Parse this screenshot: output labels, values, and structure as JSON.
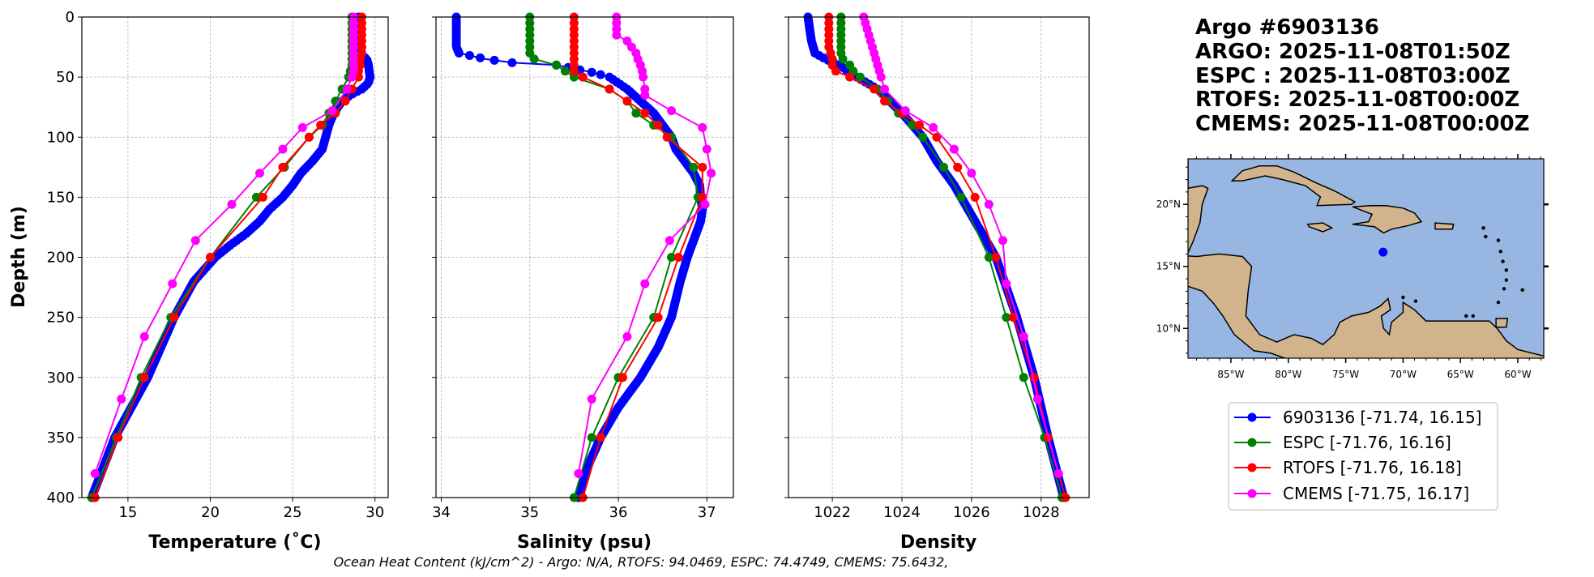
{
  "title_lines": [
    "Argo #6903136",
    "ARGO: 2025-11-08T01:50Z",
    "ESPC : 2025-11-08T03:00Z",
    "RTOFS: 2025-11-08T00:00Z",
    "CMEMS: 2025-11-08T00:00Z"
  ],
  "caption": "Ocean Heat Content (kJ/cm^2) - Argo: N/A,  RTOFS: 94.0469,  ESPC: 74.4749,  CMEMS: 75.6432,",
  "legend": [
    {
      "label": "6903136 [-71.74, 16.15]",
      "color": "#0000ff"
    },
    {
      "label": "ESPC [-71.76, 16.16]",
      "color": "#008000"
    },
    {
      "label": "RTOFS [-71.76, 16.18]",
      "color": "#ff0000"
    },
    {
      "label": "CMEMS [-71.75, 16.17]",
      "color": "#ff00ff"
    }
  ],
  "chart_data": [
    {
      "type": "line",
      "xlabel": "Temperature (˚C)",
      "ylabel": "Depth (m)",
      "xlim": [
        12.2,
        30.8
      ],
      "ylim": [
        400,
        0
      ],
      "xticks": [
        15,
        20,
        25,
        30
      ],
      "yticks": [
        0,
        50,
        100,
        150,
        200,
        250,
        300,
        350,
        400
      ],
      "grid": true,
      "series": [
        {
          "name": "6903136",
          "color": "#0000ff",
          "depth": [
            0,
            10,
            20,
            30,
            35,
            40,
            50,
            55,
            60,
            65,
            70,
            80,
            90,
            100,
            110,
            120,
            130,
            140,
            150,
            160,
            170,
            180,
            190,
            200,
            220,
            250,
            275,
            300,
            325,
            350,
            375,
            400
          ],
          "values": [
            29.0,
            29.0,
            29.0,
            29.0,
            29.5,
            29.6,
            29.7,
            29.6,
            29.2,
            28.5,
            28.0,
            27.5,
            27.2,
            27.0,
            26.8,
            26.2,
            25.5,
            25.0,
            24.4,
            23.6,
            23.0,
            22.2,
            21.2,
            20.3,
            19.0,
            17.8,
            17.0,
            16.2,
            15.2,
            14.2,
            13.5,
            12.8
          ]
        },
        {
          "name": "ESPC",
          "color": "#008000",
          "depth": [
            0,
            5,
            10,
            15,
            20,
            25,
            30,
            35,
            40,
            45,
            50,
            60,
            70,
            80,
            90,
            100,
            125,
            150,
            200,
            250,
            300,
            350,
            400
          ],
          "values": [
            28.6,
            28.6,
            28.6,
            28.6,
            28.6,
            28.6,
            28.6,
            28.6,
            28.6,
            28.5,
            28.4,
            28.0,
            27.6,
            27.2,
            26.8,
            26.0,
            24.5,
            22.8,
            20.0,
            17.6,
            15.8,
            14.3,
            12.8
          ]
        },
        {
          "name": "RTOFS",
          "color": "#ff0000",
          "depth": [
            0,
            5,
            10,
            15,
            20,
            25,
            30,
            35,
            40,
            45,
            50,
            60,
            70,
            80,
            90,
            100,
            125,
            150,
            200,
            250,
            300,
            350,
            400
          ],
          "values": [
            29.2,
            29.2,
            29.2,
            29.2,
            29.2,
            29.2,
            29.2,
            29.1,
            29.1,
            29.0,
            29.0,
            28.6,
            28.2,
            27.6,
            26.7,
            26.0,
            24.4,
            23.2,
            20.0,
            17.8,
            16.0,
            14.4,
            13.0
          ]
        },
        {
          "name": "CMEMS",
          "color": "#ff00ff",
          "depth": [
            0,
            5,
            10,
            15,
            20,
            25,
            30,
            35,
            40,
            45,
            50,
            60,
            78,
            92,
            110,
            130,
            156,
            186,
            222,
            266,
            318,
            380
          ],
          "values": [
            28.7,
            28.7,
            28.7,
            28.7,
            28.7,
            28.7,
            28.7,
            28.7,
            28.7,
            28.7,
            28.6,
            28.3,
            27.4,
            25.6,
            24.4,
            23.0,
            21.3,
            19.1,
            17.7,
            16.0,
            14.6,
            13.0
          ]
        }
      ]
    },
    {
      "type": "line",
      "xlabel": "Salinity (psu)",
      "xlim": [
        33.94,
        37.3
      ],
      "ylim": [
        400,
        0
      ],
      "xticks": [
        34,
        35,
        36,
        37
      ],
      "yticks": [
        0,
        50,
        100,
        150,
        200,
        250,
        300,
        350,
        400
      ],
      "grid": true,
      "series": [
        {
          "name": "6903136",
          "color": "#0000ff",
          "depth": [
            0,
            10,
            20,
            25,
            30,
            35,
            38,
            40,
            43,
            46,
            50,
            60,
            70,
            80,
            90,
            100,
            110,
            120,
            130,
            140,
            150,
            160,
            170,
            180,
            200,
            220,
            250,
            275,
            300,
            325,
            350,
            375,
            400
          ],
          "values": [
            34.17,
            34.17,
            34.17,
            34.17,
            34.2,
            34.5,
            34.8,
            35.3,
            35.5,
            35.7,
            35.9,
            36.1,
            36.25,
            36.4,
            36.5,
            36.6,
            36.65,
            36.75,
            36.85,
            36.92,
            36.93,
            36.95,
            36.93,
            36.88,
            36.78,
            36.7,
            36.6,
            36.45,
            36.25,
            36.0,
            35.8,
            35.65,
            35.55
          ]
        },
        {
          "name": "ESPC",
          "color": "#008000",
          "depth": [
            0,
            5,
            10,
            15,
            20,
            25,
            30,
            35,
            40,
            45,
            50,
            60,
            70,
            80,
            90,
            100,
            125,
            150,
            200,
            250,
            300,
            350,
            400
          ],
          "values": [
            35.0,
            35.0,
            35.0,
            35.0,
            35.0,
            35.0,
            35.0,
            35.05,
            35.3,
            35.4,
            35.5,
            35.9,
            36.1,
            36.2,
            36.4,
            36.6,
            36.85,
            36.9,
            36.6,
            36.4,
            36.0,
            35.7,
            35.5
          ]
        },
        {
          "name": "RTOFS",
          "color": "#ff0000",
          "depth": [
            0,
            5,
            10,
            15,
            20,
            25,
            30,
            35,
            40,
            45,
            50,
            60,
            70,
            80,
            90,
            100,
            125,
            150,
            200,
            250,
            300,
            350,
            400
          ],
          "values": [
            35.5,
            35.5,
            35.5,
            35.5,
            35.5,
            35.5,
            35.5,
            35.5,
            35.5,
            35.5,
            35.6,
            35.9,
            36.1,
            36.3,
            36.45,
            36.55,
            36.95,
            36.95,
            36.68,
            36.45,
            36.05,
            35.8,
            35.6
          ]
        },
        {
          "name": "CMEMS",
          "color": "#ff00ff",
          "depth": [
            0,
            5,
            10,
            15,
            20,
            25,
            30,
            35,
            40,
            45,
            50,
            60,
            65,
            78,
            92,
            110,
            130,
            156,
            186,
            222,
            266,
            318,
            380
          ],
          "values": [
            35.98,
            35.98,
            35.98,
            35.98,
            36.1,
            36.15,
            36.2,
            36.22,
            36.25,
            36.27,
            36.28,
            36.3,
            36.3,
            36.6,
            36.95,
            37.0,
            37.05,
            36.98,
            36.58,
            36.3,
            36.1,
            35.7,
            35.55
          ]
        }
      ]
    },
    {
      "type": "line",
      "xlabel": "Density",
      "xlim": [
        1020.74,
        1029.38
      ],
      "ylim": [
        400,
        0
      ],
      "xticks": [
        1022,
        1024,
        1026,
        1028
      ],
      "yticks": [
        0,
        50,
        100,
        150,
        200,
        250,
        300,
        350,
        400
      ],
      "grid": true,
      "series": [
        {
          "name": "6903136",
          "color": "#0000ff",
          "depth": [
            0,
            20,
            30,
            35,
            40,
            50,
            60,
            80,
            100,
            120,
            140,
            160,
            180,
            200,
            250,
            300,
            350,
            400
          ],
          "values": [
            1021.3,
            1021.4,
            1021.5,
            1021.8,
            1022.2,
            1022.7,
            1023.3,
            1024.0,
            1024.6,
            1025.0,
            1025.5,
            1025.9,
            1026.3,
            1026.7,
            1027.3,
            1027.8,
            1028.2,
            1028.65
          ]
        },
        {
          "name": "ESPC",
          "color": "#008000",
          "depth": [
            0,
            5,
            10,
            15,
            20,
            25,
            30,
            35,
            40,
            45,
            50,
            60,
            70,
            80,
            90,
            100,
            125,
            150,
            200,
            250,
            300,
            350,
            400
          ],
          "values": [
            1022.25,
            1022.25,
            1022.25,
            1022.25,
            1022.25,
            1022.25,
            1022.25,
            1022.3,
            1022.5,
            1022.6,
            1022.8,
            1023.3,
            1023.6,
            1023.9,
            1024.3,
            1024.6,
            1025.2,
            1025.7,
            1026.5,
            1027.0,
            1027.5,
            1028.1,
            1028.6
          ]
        },
        {
          "name": "RTOFS",
          "color": "#ff0000",
          "depth": [
            0,
            5,
            10,
            15,
            20,
            25,
            30,
            35,
            40,
            45,
            50,
            60,
            70,
            80,
            90,
            100,
            125,
            150,
            200,
            250,
            300,
            350,
            400
          ],
          "values": [
            1021.9,
            1021.9,
            1021.9,
            1021.9,
            1021.9,
            1021.9,
            1021.95,
            1022.0,
            1022.0,
            1022.1,
            1022.5,
            1023.2,
            1023.5,
            1024.0,
            1024.5,
            1025.0,
            1025.6,
            1026.1,
            1026.7,
            1027.2,
            1027.8,
            1028.2,
            1028.7
          ]
        },
        {
          "name": "CMEMS",
          "color": "#ff00ff",
          "depth": [
            0,
            5,
            10,
            15,
            20,
            25,
            30,
            35,
            40,
            45,
            50,
            60,
            78,
            92,
            110,
            130,
            156,
            186,
            222,
            266,
            318,
            380
          ],
          "values": [
            1022.9,
            1022.95,
            1023.0,
            1023.05,
            1023.1,
            1023.15,
            1023.2,
            1023.25,
            1023.3,
            1023.35,
            1023.4,
            1023.5,
            1024.1,
            1024.9,
            1025.5,
            1026.0,
            1026.5,
            1026.9,
            1027.0,
            1027.5,
            1027.9,
            1028.5
          ]
        }
      ]
    }
  ],
  "map": {
    "lon_range": [
      -88.74,
      -57.74
    ],
    "lat_range": [
      7.6,
      23.67
    ],
    "lon_ticks": [
      -85,
      -80,
      -75,
      -70,
      -65,
      -60
    ],
    "lon_tick_labels": [
      "85°W",
      "80°W",
      "75°W",
      "70°W",
      "65°W",
      "60°W"
    ],
    "lat_ticks": [
      20,
      15,
      10
    ],
    "lat_tick_labels": [
      "20°N",
      "15°N",
      "10°N"
    ],
    "ocean_color": "#97b6e1",
    "land_color": "#d2b48c",
    "argo_point": {
      "lon": -71.74,
      "lat": 16.15,
      "color": "#0000ff"
    }
  }
}
